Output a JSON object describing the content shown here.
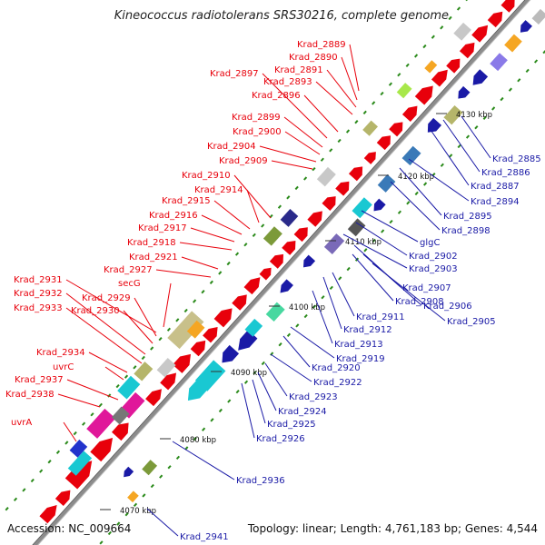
{
  "title": "Kineococcus radiotolerans SRS30216, complete genome",
  "footer": {
    "accession": "Accession: NC_009664",
    "summary": "Topology: linear; Length: 4,761,183 bp; Genes: 4,544"
  },
  "colors": {
    "forward": "#e8000b",
    "reverse": "#1a1aa6",
    "backbone": "#8c8c8c",
    "gc_tick": "#2a8a1a"
  },
  "ticks": [
    "4070 kbp",
    "4080 kbp",
    "4090 kbp",
    "4100 kbp",
    "4110 kbp",
    "4120 kbp",
    "4130 kbp"
  ],
  "forward_labels": [
    "Krad_2889",
    "Krad_2890",
    "Krad_2891",
    "Krad_2893",
    "Krad_2896",
    "Krad_2897",
    "Krad_2899",
    "Krad_2900",
    "Krad_2904",
    "Krad_2909",
    "Krad_2910",
    "Krad_2914",
    "Krad_2915",
    "Krad_2916",
    "Krad_2917",
    "Krad_2918",
    "Krad_2921",
    "Krad_2927",
    "secG",
    "Krad_2929",
    "Krad_2930",
    "Krad_2931",
    "Krad_2932",
    "Krad_2933",
    "Krad_2934",
    "uvrC",
    "Krad_2937",
    "Krad_2938",
    "uvrA"
  ],
  "reverse_labels": [
    "Krad_2885",
    "Krad_2886",
    "Krad_2887",
    "Krad_2894",
    "Krad_2895",
    "Krad_2898",
    "glgC",
    "Krad_2902",
    "Krad_2903",
    "Krad_2907",
    "Krad_2908",
    "Krad_2906",
    "Krad_2905",
    "Krad_2911",
    "Krad_2912",
    "Krad_2913",
    "Krad_2919",
    "Krad_2920",
    "Krad_2922",
    "Krad_2923",
    "Krad_2924",
    "Krad_2925",
    "Krad_2926",
    "Krad_2936",
    "Krad_2941"
  ]
}
